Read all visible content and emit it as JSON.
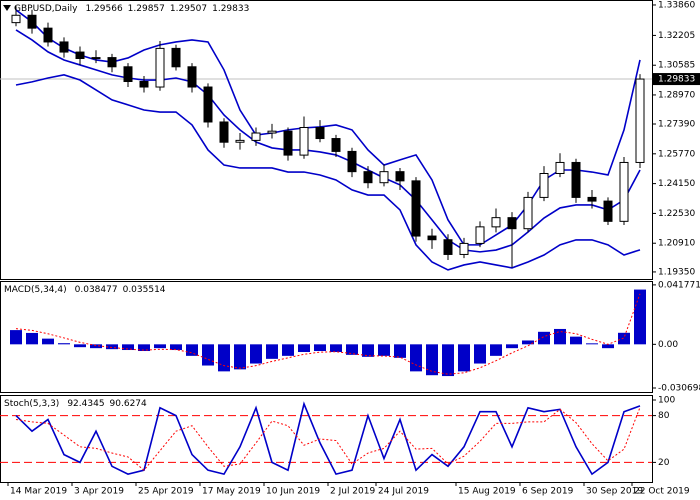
{
  "chart_data": [
    {
      "type": "candlestick",
      "title": "GBPUSD,Daily",
      "header_values": [
        1.29566,
        1.29857,
        1.29507,
        1.29833
      ],
      "categories": [
        "14 Mar 2019",
        null,
        null,
        null,
        "3 Apr 2019",
        null,
        null,
        null,
        "25 Apr 2019",
        null,
        null,
        null,
        "17 May 2019",
        null,
        null,
        null,
        "10 Jun 2019",
        null,
        null,
        null,
        "2 Jul 2019",
        null,
        null,
        "24 Jul 2019",
        null,
        null,
        null,
        null,
        "15 Aug 2019",
        null,
        null,
        null,
        "6 Sep 2019",
        null,
        null,
        null,
        "30 Sep 2019",
        null,
        null,
        "22 Oct 2019"
      ],
      "open": [
        1.329,
        1.333,
        1.326,
        1.3185,
        1.313,
        1.3095,
        1.31,
        1.305,
        1.297,
        1.294,
        1.315,
        1.305,
        1.294,
        1.275,
        1.264,
        1.265,
        1.269,
        1.27,
        1.257,
        1.272,
        1.266,
        1.259,
        1.248,
        1.242,
        1.248,
        1.243,
        1.213,
        1.211,
        1.203,
        1.209,
        1.218,
        1.223,
        1.217,
        1.234,
        1.247,
        1.253,
        1.234,
        1.232,
        1.221,
        1.253
      ],
      "high": [
        1.338,
        1.336,
        1.329,
        1.321,
        1.316,
        1.314,
        1.312,
        1.307,
        1.3,
        1.319,
        1.317,
        1.307,
        1.296,
        1.277,
        1.269,
        1.272,
        1.274,
        1.272,
        1.278,
        1.276,
        1.268,
        1.261,
        1.251,
        1.252,
        1.25,
        1.245,
        1.217,
        1.214,
        1.212,
        1.221,
        1.228,
        1.226,
        1.237,
        1.251,
        1.258,
        1.255,
        1.238,
        1.234,
        1.256,
        1.301
      ],
      "low": [
        1.327,
        1.323,
        1.316,
        1.31,
        1.306,
        1.307,
        1.302,
        1.294,
        1.291,
        1.292,
        1.303,
        1.291,
        1.272,
        1.261,
        1.26,
        1.262,
        1.266,
        1.254,
        1.255,
        1.264,
        1.256,
        1.245,
        1.239,
        1.24,
        1.238,
        1.21,
        1.206,
        1.2,
        1.201,
        1.207,
        1.215,
        1.196,
        1.215,
        1.232,
        1.245,
        1.231,
        1.228,
        1.219,
        1.219,
        1.25
      ],
      "close": [
        1.333,
        1.326,
        1.3185,
        1.313,
        1.3095,
        1.31,
        1.305,
        1.297,
        1.294,
        1.315,
        1.305,
        1.294,
        1.275,
        1.264,
        1.265,
        1.269,
        1.27,
        1.257,
        1.272,
        1.266,
        1.259,
        1.248,
        1.242,
        1.248,
        1.243,
        1.213,
        1.211,
        1.203,
        1.209,
        1.218,
        1.223,
        1.217,
        1.234,
        1.247,
        1.253,
        1.234,
        1.232,
        1.221,
        1.253,
        1.29833
      ],
      "up_color": "#ffffff",
      "down_color": "#000000",
      "wick_color": "#000000",
      "series": [
        {
          "color": "#0000c8",
          "values": [
            1.3359,
            1.3294,
            1.3207,
            1.3152,
            1.3114,
            1.3087,
            1.3076,
            1.3098,
            1.3141,
            1.3169,
            1.3185,
            1.3196,
            1.3185,
            1.3033,
            1.2815,
            1.2679,
            1.269,
            1.2707,
            1.2718,
            1.2723,
            1.2734,
            1.2707,
            1.2598,
            1.2516,
            1.2544,
            1.2571,
            1.2435,
            1.2218,
            1.2082,
            1.2082,
            1.2136,
            1.219,
            1.2299,
            1.2435,
            1.2489,
            1.2489,
            1.2478,
            1.2462,
            1.2707,
            1.3087
          ]
        },
        {
          "color": "#0000c8",
          "values": [
            1.325,
            1.3196,
            1.3131,
            1.3087,
            1.306,
            1.3033,
            1.3006,
            1.2989,
            1.2978,
            1.2978,
            1.2989,
            1.2968,
            1.2897,
            1.2788,
            1.2707,
            1.2641,
            1.2609,
            1.2598,
            1.2598,
            1.2587,
            1.2571,
            1.2533,
            1.2489,
            1.2446,
            1.2408,
            1.2326,
            1.2218,
            1.2109,
            1.2054,
            1.2044,
            1.2054,
            1.2082,
            1.2152,
            1.2228,
            1.2283,
            1.2299,
            1.2299,
            1.2272,
            1.2326,
            1.2489
          ]
        },
        {
          "color": "#0000c8",
          "values": [
            1.2951,
            1.2968,
            1.2989,
            1.3006,
            1.2978,
            1.2924,
            1.287,
            1.2843,
            1.2815,
            1.2804,
            1.2804,
            1.2734,
            1.2598,
            1.2516,
            1.25,
            1.25,
            1.25,
            1.2478,
            1.2478,
            1.2462,
            1.2435,
            1.2381,
            1.2353,
            1.2353,
            1.2272,
            1.2082,
            1.1989,
            1.1946,
            1.1973,
            1.1989,
            1.1973,
            1.1957,
            1.1989,
            1.2027,
            1.2082,
            1.2109,
            1.2109,
            1.2082,
            1.2027,
            1.2055
          ]
        }
      ],
      "ylim": [
        1.1902,
        1.3413
      ],
      "yticks": [
        {
          "value": 1.3386,
          "label": "1.33860"
        },
        1.32205,
        1.30585,
        {
          "value": 1.2897,
          "label": "1.28970"
        },
        {
          "value": 1.2739,
          "label": "1.27390"
        },
        {
          "value": 1.2577,
          "label": "1.25770"
        },
        {
          "value": 1.2415,
          "label": "1.24150"
        },
        {
          "value": 1.2253,
          "label": "1.22530"
        },
        {
          "value": 1.2091,
          "label": "1.20910"
        },
        {
          "value": 1.1935,
          "label": "1.19350"
        }
      ]
    },
    {
      "type": "bar",
      "title": "MACD(5,34,4)",
      "header_values": [
        0.038477,
        0.035514
      ],
      "values": [
        0.01,
        0.008,
        0.004,
        0.0008,
        -0.002,
        -0.0027,
        -0.0034,
        -0.004,
        -0.0047,
        -0.0027,
        -0.004,
        -0.0081,
        -0.0149,
        -0.019,
        -0.0176,
        -0.0135,
        -0.0102,
        -0.0081,
        -0.0054,
        -0.0047,
        -0.0054,
        -0.0074,
        -0.0088,
        -0.0081,
        -0.0095,
        -0.019,
        -0.0217,
        -0.0223,
        -0.019,
        -0.0135,
        -0.0081,
        -0.0027,
        0.0027,
        0.0088,
        0.0108,
        0.0054,
        0.0007,
        -0.0027,
        0.0081,
        0.038477
      ],
      "color": "#0000c8",
      "signal": {
        "color": "#ff0000",
        "values": [
          0.011,
          0.0098,
          0.0074,
          0.0045,
          0.0014,
          -0.0008,
          -0.0022,
          -0.0033,
          -0.0041,
          -0.0035,
          -0.0037,
          -0.006,
          -0.0105,
          -0.015,
          -0.0168,
          -0.015,
          -0.012,
          -0.0095,
          -0.007,
          -0.0055,
          -0.0052,
          -0.0065,
          -0.008,
          -0.0082,
          -0.009,
          -0.0145,
          -0.019,
          -0.021,
          -0.02,
          -0.0165,
          -0.0115,
          -0.006,
          -0.001,
          0.0055,
          0.009,
          0.0075,
          0.0035,
          0.0,
          0.0045,
          0.035514
        ]
      },
      "ylim": [
        -0.0335,
        0.0445
      ],
      "yticks": [
        0.041771,
        {
          "value": 0,
          "label": "0.00"
        },
        -0.030698
      ]
    },
    {
      "type": "line",
      "title": "Stoch(5,3,3)",
      "header_values": [
        92.4345,
        90.6274
      ],
      "series": [
        {
          "color": "#0000c8",
          "values": [
            80,
            60,
            75,
            30,
            20,
            60,
            15,
            5,
            10,
            90,
            80,
            30,
            10,
            5,
            40,
            90,
            20,
            10,
            95,
            45,
            5,
            10,
            80,
            25,
            75,
            10,
            30,
            15,
            40,
            85,
            85,
            40,
            90,
            85,
            88,
            40,
            5,
            20,
            85,
            92.4345
          ]
        },
        {
          "color": "#ff0000",
          "dashed": true,
          "values": [
            75,
            72,
            70,
            55,
            40,
            38,
            32,
            27,
            10,
            35,
            60,
            67,
            40,
            15,
            18,
            45,
            73,
            67,
            42,
            50,
            48,
            18,
            32,
            38,
            60,
            37,
            38,
            18,
            28,
            47,
            70,
            70,
            72,
            72,
            88,
            71,
            44,
            22,
            37,
            90.6274
          ]
        }
      ],
      "levels": [
        20,
        80
      ],
      "level_color": "#ff0000",
      "ylim": [
        0,
        100
      ],
      "yticks": [
        20,
        80,
        100
      ]
    }
  ]
}
